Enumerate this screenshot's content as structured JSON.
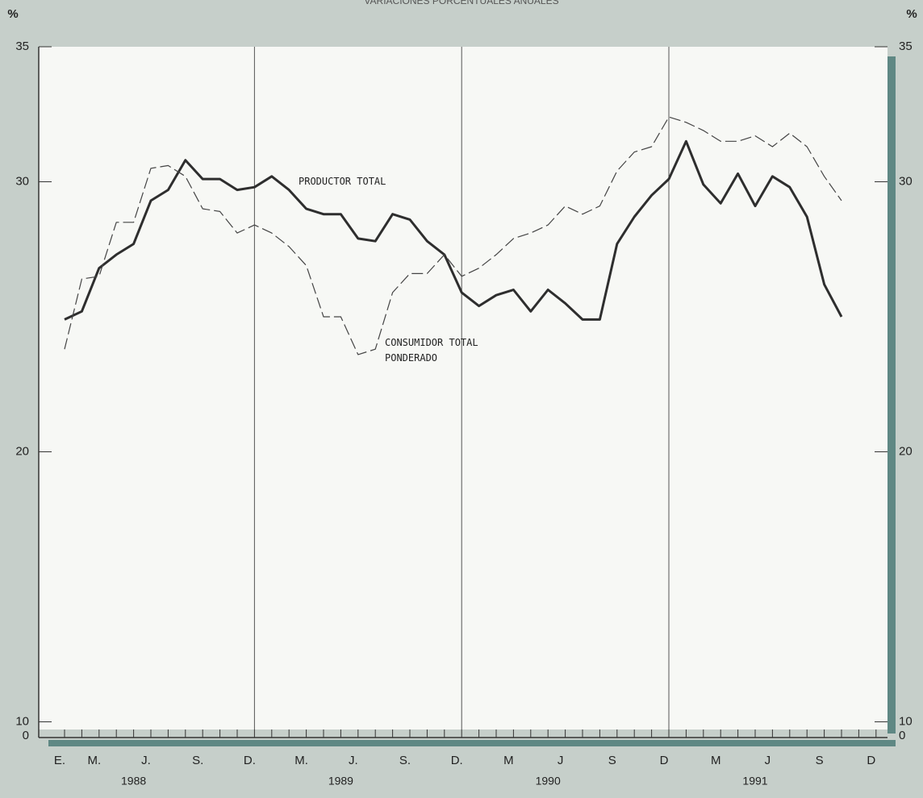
{
  "chart_data": {
    "type": "line",
    "title": "VARIACIONES PORCENTUALES ANUALES",
    "y_unit": "%",
    "categories": [
      "E.",
      null,
      "M.",
      null,
      null,
      "J.",
      null,
      null,
      "S.",
      null,
      null,
      "D.",
      null,
      null,
      "M.",
      null,
      null,
      "J.",
      null,
      null,
      "S.",
      null,
      null,
      "D.",
      null,
      null,
      "M",
      null,
      null,
      "J",
      null,
      null,
      "S",
      null,
      null,
      "D",
      null,
      null,
      "M",
      null,
      null,
      "J",
      null,
      null,
      "S",
      null,
      null,
      "D"
    ],
    "year_labels": [
      "1988",
      "1989",
      "1990",
      "1991"
    ],
    "series": [
      {
        "name": "PRODUCTOR TOTAL",
        "color": "#2e2e2e",
        "style": "solid",
        "values": [
          24.9,
          25.2,
          26.8,
          27.3,
          27.7,
          29.3,
          29.7,
          30.8,
          30.1,
          30.1,
          29.7,
          29.8,
          30.2,
          29.7,
          29.0,
          28.8,
          28.8,
          27.9,
          27.8,
          28.8,
          28.6,
          27.8,
          27.3,
          25.9,
          25.4,
          25.8,
          26.0,
          25.2,
          26.0,
          25.5,
          24.9,
          24.9,
          27.7,
          28.7,
          29.5,
          30.1,
          31.5,
          29.9,
          29.2,
          30.3,
          29.1,
          30.2,
          29.8,
          28.7,
          26.2,
          25.0,
          null,
          null
        ]
      },
      {
        "name": "CONSUMIDOR TOTAL PONDERADO",
        "color": "#444444",
        "style": "dashed",
        "values": [
          23.8,
          26.4,
          26.5,
          28.5,
          28.5,
          30.5,
          30.6,
          30.2,
          29.0,
          28.9,
          28.1,
          28.4,
          28.1,
          27.6,
          26.9,
          25.0,
          25.0,
          23.6,
          23.8,
          25.9,
          26.6,
          26.6,
          27.3,
          26.5,
          26.8,
          27.3,
          27.9,
          28.1,
          28.4,
          29.1,
          28.8,
          29.1,
          30.4,
          31.1,
          31.3,
          32.4,
          32.2,
          31.9,
          31.5,
          31.5,
          31.7,
          31.3,
          31.8,
          31.3,
          30.2,
          29.3,
          null,
          null
        ]
      }
    ],
    "ylim": [
      10,
      35
    ],
    "yticks": [
      10,
      20,
      30,
      35
    ],
    "axis_break_label": 0
  }
}
